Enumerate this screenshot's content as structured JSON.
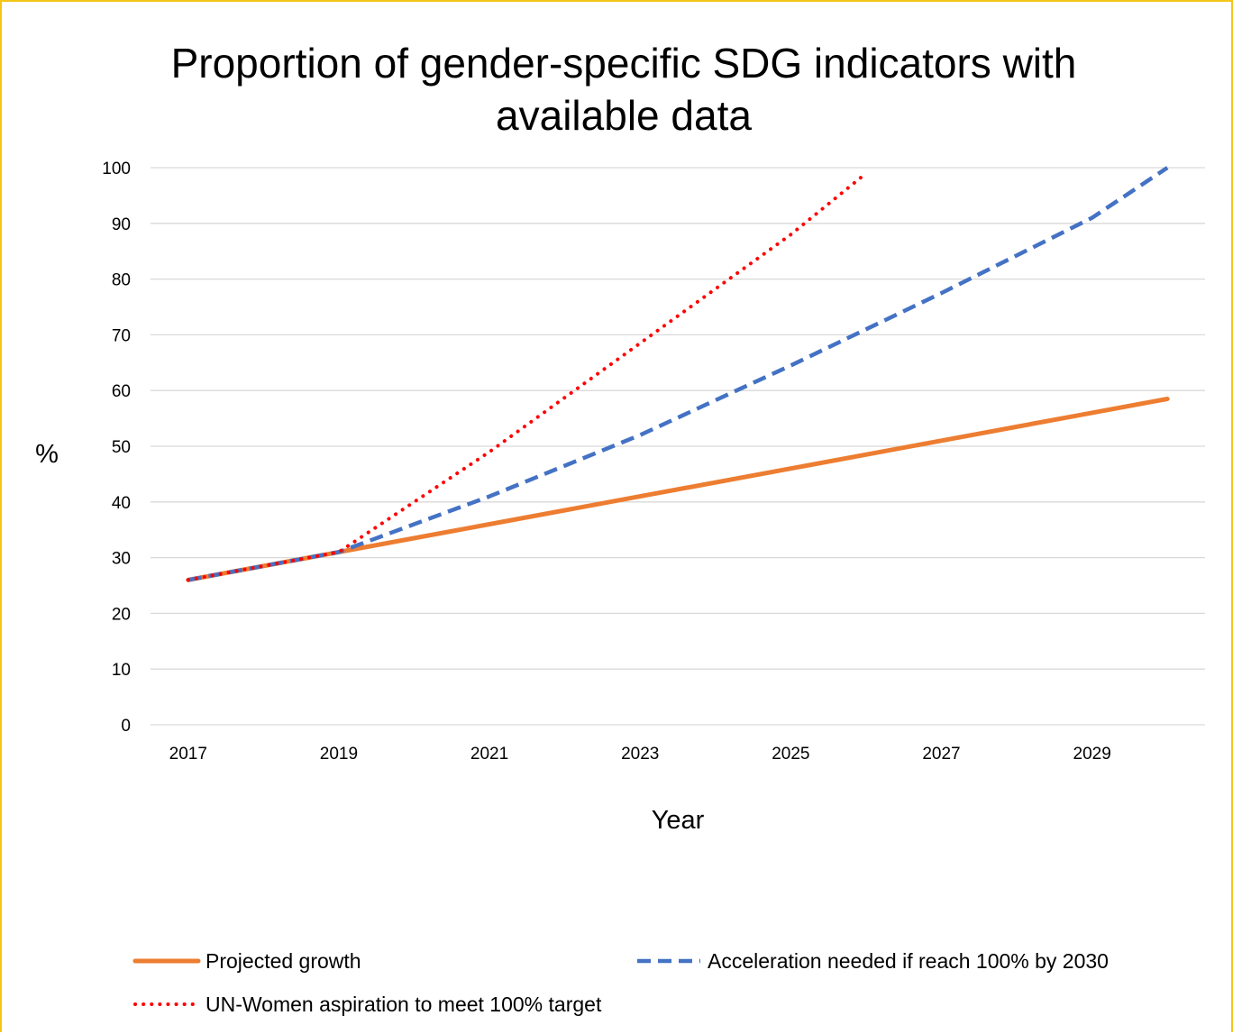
{
  "chart_data": {
    "type": "line",
    "title_lines": [
      "Proportion of gender-specific SDG indicators with",
      "available data"
    ],
    "xlabel": "Year",
    "ylabel": "%",
    "x_ticks": [
      "2017",
      "2019",
      "2021",
      "2023",
      "2025",
      "2027",
      "2029"
    ],
    "y_ticks": [
      "0",
      "10",
      "20",
      "30",
      "40",
      "50",
      "60",
      "70",
      "80",
      "90",
      "100"
    ],
    "xlim": [
      2016.5,
      2030.5
    ],
    "ylim": [
      0,
      100
    ],
    "grid": true,
    "legend_position": "bottom",
    "series": [
      {
        "name": "Projected growth",
        "color": "#ED7D31",
        "style": "solid",
        "x": [
          2017,
          2019,
          2021,
          2023,
          2025,
          2027,
          2029,
          2030
        ],
        "y": [
          26,
          31,
          36,
          41,
          46,
          51,
          56,
          58.5
        ]
      },
      {
        "name": "Acceleration needed if reach 100% by 2030",
        "color": "#4472C4",
        "style": "dashed",
        "x": [
          2017,
          2019,
          2021,
          2023,
          2025,
          2027,
          2029,
          2030
        ],
        "y": [
          26,
          31,
          41,
          52,
          64.5,
          77.5,
          91,
          100
        ]
      },
      {
        "name": "UN-Women aspiration to meet 100% target",
        "color": "#FF0000",
        "style": "dotted",
        "x": [
          2017,
          2019,
          2021,
          2023,
          2025,
          2026
        ],
        "y": [
          26,
          31,
          49,
          68.5,
          88,
          99
        ]
      }
    ]
  }
}
